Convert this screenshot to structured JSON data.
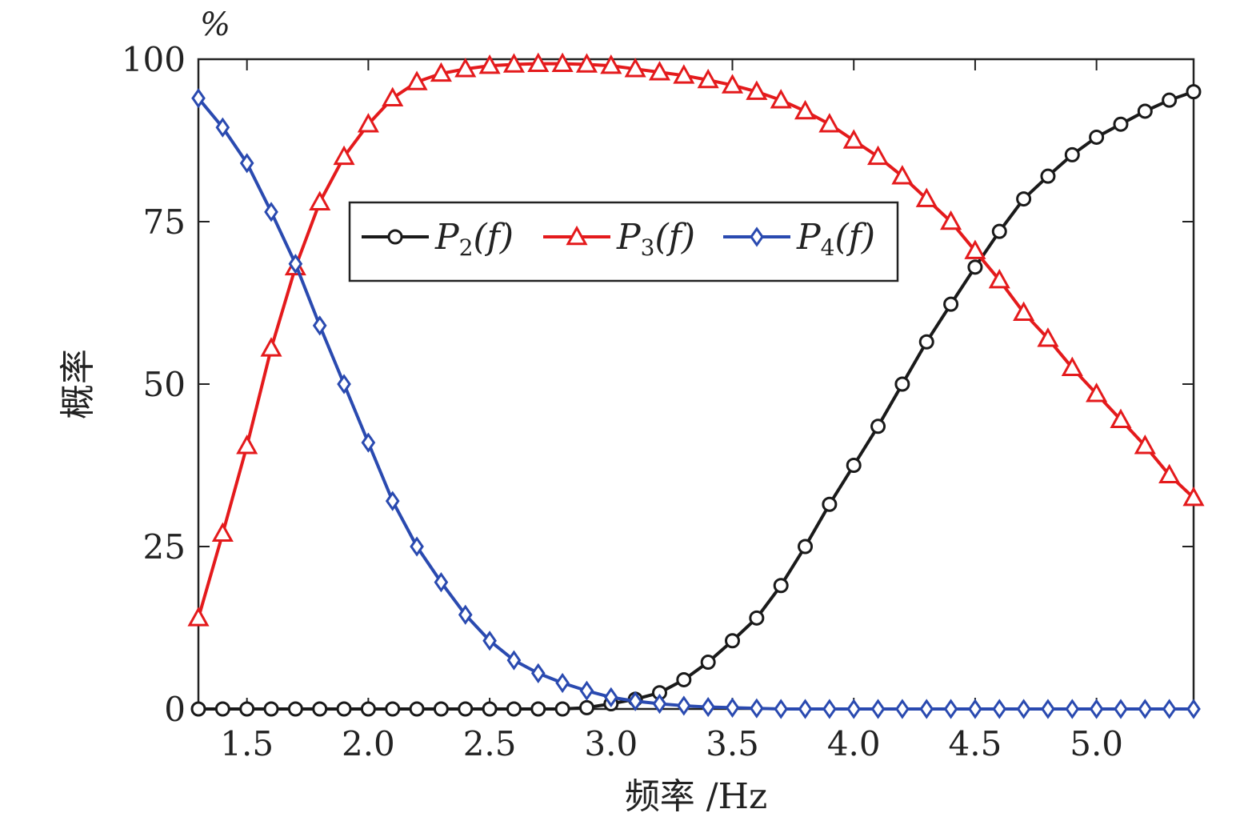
{
  "chart_data": {
    "type": "line",
    "xlabel": "频率 /Hz",
    "ylabel": "概率",
    "yunit": "%",
    "xlim": [
      1.3,
      5.4
    ],
    "ylim": [
      0,
      100
    ],
    "xticks": [
      1.5,
      2.0,
      2.5,
      3.0,
      3.5,
      4.0,
      4.5,
      5.0
    ],
    "xtick_labels": [
      "1.5",
      "2.0",
      "2.5",
      "3.0",
      "3.5",
      "4.0",
      "4.5",
      "5.0"
    ],
    "yticks": [
      0,
      25,
      50,
      75,
      100
    ],
    "ytick_labels": [
      "0",
      "25",
      "50",
      "75",
      "100"
    ],
    "grid": false,
    "legend_position": "upper-center",
    "x": [
      1.3,
      1.4,
      1.5,
      1.6,
      1.7,
      1.8,
      1.9,
      2.0,
      2.1,
      2.2,
      2.3,
      2.4,
      2.5,
      2.6,
      2.7,
      2.8,
      2.9,
      3.0,
      3.1,
      3.2,
      3.3,
      3.4,
      3.5,
      3.6,
      3.7,
      3.8,
      3.9,
      4.0,
      4.1,
      4.2,
      4.3,
      4.4,
      4.5,
      4.6,
      4.7,
      4.8,
      4.9,
      5.0,
      5.1,
      5.2,
      5.3,
      5.4
    ],
    "series": [
      {
        "name": "P",
        "subscript": "2",
        "suffix": "(f)",
        "color": "#1a1a1a",
        "marker": "circle",
        "values": [
          0,
          0,
          0,
          0,
          0,
          0,
          0,
          0,
          0,
          0,
          0,
          0,
          0,
          0,
          0,
          0,
          0.2,
          0.8,
          1.5,
          2.5,
          4.5,
          7.2,
          10.5,
          14,
          19,
          25,
          31.5,
          37.5,
          43.5,
          50,
          56.5,
          62.3,
          68,
          73.5,
          78.5,
          82,
          85.3,
          88,
          90,
          92,
          93.7,
          95
        ]
      },
      {
        "name": "P",
        "subscript": "3",
        "suffix": "(f)",
        "color": "#e41a1c",
        "marker": "triangle",
        "values": [
          14,
          27,
          40.5,
          55.5,
          68,
          78,
          85,
          90,
          94,
          96.5,
          97.8,
          98.5,
          99,
          99.2,
          99.3,
          99.3,
          99.2,
          99,
          98.5,
          98,
          97.5,
          96.8,
          96,
          95,
          93.7,
          92,
          90,
          87.5,
          85,
          82,
          78.5,
          75,
          70.5,
          66,
          61,
          57,
          52.5,
          48.5,
          44.5,
          40.5,
          36,
          32.5
        ]
      },
      {
        "name": "P",
        "subscript": "4",
        "suffix": "(f)",
        "color": "#2a4ab0",
        "marker": "diamond",
        "values": [
          94,
          89.5,
          84,
          76.5,
          68.5,
          59,
          50,
          41,
          32,
          25,
          19.5,
          14.5,
          10.5,
          7.5,
          5.5,
          4,
          2.8,
          1.8,
          1.2,
          0.8,
          0.5,
          0.3,
          0.2,
          0.1,
          0,
          0,
          0,
          0,
          0,
          0,
          0,
          0,
          0,
          0,
          0,
          0,
          0,
          0,
          0,
          0,
          0,
          0
        ]
      }
    ]
  }
}
